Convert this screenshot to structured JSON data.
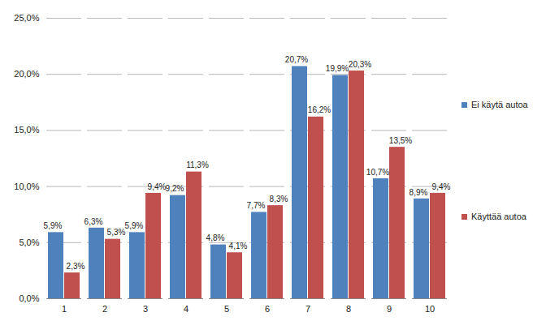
{
  "chart_data": {
    "type": "bar",
    "categories": [
      "1",
      "2",
      "3",
      "4",
      "5",
      "6",
      "7",
      "8",
      "9",
      "10"
    ],
    "series": [
      {
        "name": "Ei käytä autoa",
        "color": "#4f81bd",
        "values": [
          5.9,
          6.3,
          5.9,
          9.2,
          4.8,
          7.7,
          20.7,
          19.9,
          10.7,
          8.9
        ],
        "value_labels": [
          "5,9%",
          "6,3%",
          "5,9%",
          "9,2%",
          "4,8%",
          "7,7%",
          "20,7%",
          "19,9%",
          "10,7%",
          "8,9%"
        ]
      },
      {
        "name": "Käyttää autoa",
        "color": "#c0504d",
        "values": [
          2.3,
          5.3,
          9.4,
          11.3,
          4.1,
          8.3,
          16.2,
          20.3,
          13.5,
          9.4
        ],
        "value_labels": [
          "2,3%",
          "5,3%",
          "9,4%",
          "11,3%",
          "4,1%",
          "8,3%",
          "16,2%",
          "20,3%",
          "13,5%",
          "9,4%"
        ]
      }
    ],
    "ylim": [
      0,
      25
    ],
    "yticks": [
      {
        "value": 0,
        "label": "0,0%"
      },
      {
        "value": 5,
        "label": "5,0%"
      },
      {
        "value": 10,
        "label": "10,0%"
      },
      {
        "value": 15,
        "label": "15,0%"
      },
      {
        "value": 20,
        "label": "20,0%"
      },
      {
        "value": 25,
        "label": "25,0%"
      }
    ],
    "grid": true,
    "legend": "right",
    "data_labels": true
  }
}
